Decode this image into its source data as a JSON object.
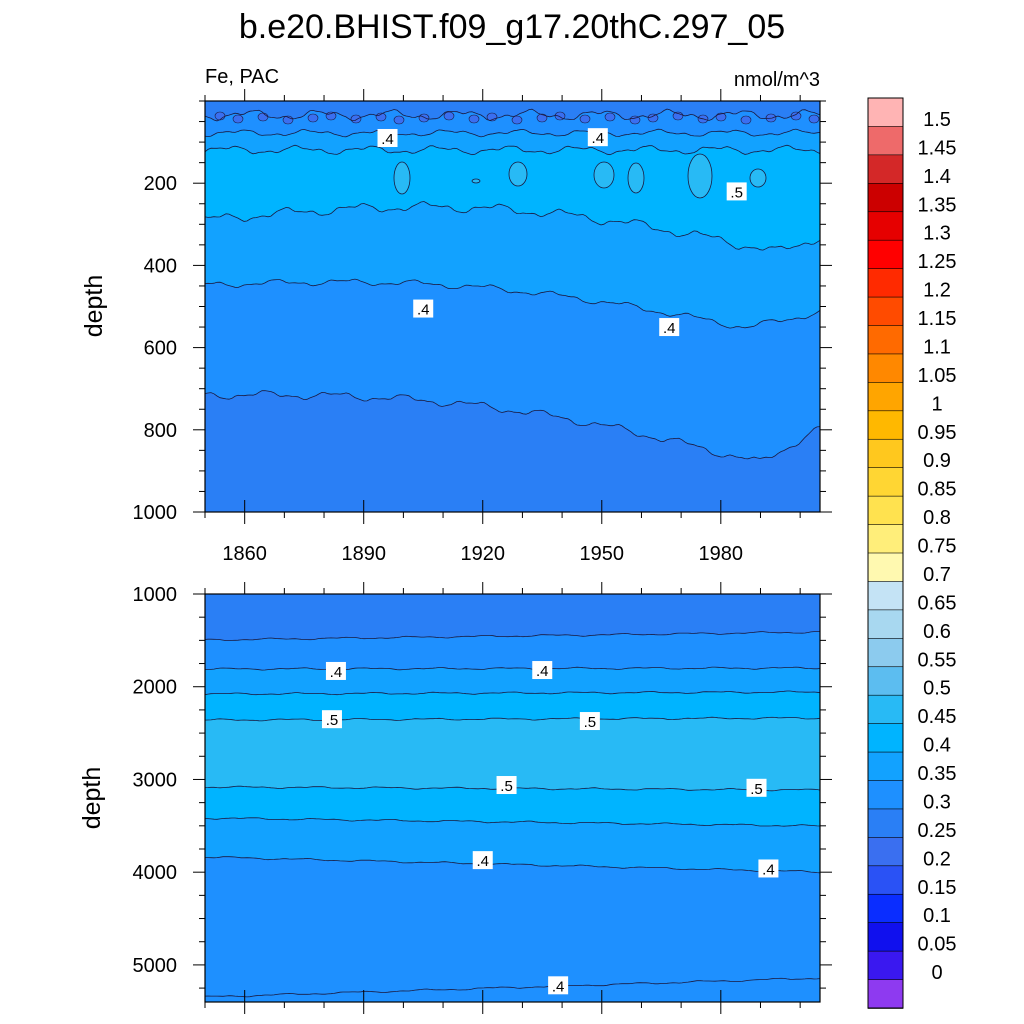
{
  "title": "b.e20.BHIST.f09_g17.20thC.297_05",
  "chart_data": [
    {
      "type": "contour",
      "panel": "upper",
      "left_label": "Fe, PAC",
      "right_label": "nmol/m^3",
      "ylabel": "depth",
      "xlabel": "",
      "xlim": [
        1850,
        2005
      ],
      "ylim": [
        1000,
        0
      ],
      "y_reversed": true,
      "x_ticks": [
        1860,
        1890,
        1920,
        1950,
        1980
      ],
      "y_ticks": [
        200,
        400,
        600,
        800,
        1000
      ],
      "levels": [
        0.25,
        0.3,
        0.35,
        0.4,
        0.45,
        0.5,
        0.55
      ],
      "contour_labels": [
        {
          "text": ".4",
          "x": 1896,
          "y": 90
        },
        {
          "text": ".4",
          "x": 1949,
          "y": 88
        },
        {
          "text": ".5",
          "x": 1984,
          "y": 220
        },
        {
          "text": ".4",
          "x": 1905,
          "y": 505
        },
        {
          "text": ".4",
          "x": 1967,
          "y": 550
        }
      ]
    },
    {
      "type": "contour",
      "panel": "lower",
      "ylabel": "depth",
      "xlabel": "",
      "xlim": [
        1850,
        2005
      ],
      "ylim": [
        5400,
        1000
      ],
      "y_reversed": true,
      "x_ticks": [
        1860,
        1890,
        1920,
        1950,
        1980
      ],
      "y_ticks": [
        1000,
        2000,
        3000,
        4000,
        5000
      ],
      "levels": [
        0.3,
        0.35,
        0.4,
        0.45,
        0.5
      ],
      "contour_labels": [
        {
          "text": ".4",
          "x": 1883,
          "y": 1830
        },
        {
          "text": ".4",
          "x": 1935,
          "y": 1820
        },
        {
          "text": ".5",
          "x": 1882,
          "y": 2350
        },
        {
          "text": ".5",
          "x": 1947,
          "y": 2370
        },
        {
          "text": ".5",
          "x": 1926,
          "y": 3060
        },
        {
          "text": ".5",
          "x": 1989,
          "y": 3090
        },
        {
          "text": ".4",
          "x": 1920,
          "y": 3870
        },
        {
          "text": ".4",
          "x": 1992,
          "y": 3960
        },
        {
          "text": ".4",
          "x": 1939,
          "y": 5220
        }
      ]
    }
  ],
  "colorbar": {
    "labels": [
      "1.5",
      "1.45",
      "1.4",
      "1.35",
      "1.3",
      "1.25",
      "1.2",
      "1.15",
      "1.1",
      "1.05",
      "1",
      "0.95",
      "0.9",
      "0.85",
      "0.8",
      "0.75",
      "0.7",
      "0.65",
      "0.6",
      "0.55",
      "0.5",
      "0.45",
      "0.4",
      "0.35",
      "0.3",
      "0.25",
      "0.2",
      "0.15",
      "0.1",
      "0.05",
      "0"
    ],
    "colors": [
      "#ffb4b4",
      "#ee6a6a",
      "#d42828",
      "#cc0000",
      "#e60000",
      "#ff0000",
      "#ff2a00",
      "#ff4b00",
      "#ff6a00",
      "#ff8800",
      "#ffa500",
      "#ffb800",
      "#ffc81e",
      "#ffd633",
      "#ffe24f",
      "#ffee7a",
      "#fff9b0",
      "#c4e3f5",
      "#a8d8f0",
      "#8ccbee",
      "#5cbdf0",
      "#28baf5",
      "#00b4ff",
      "#12a2ff",
      "#1e90ff",
      "#2a7ff5",
      "#3a6ff0",
      "#2a52f5",
      "#0a2dff",
      "#1010ee",
      "#3a18f0",
      "#8e3af0"
    ]
  }
}
